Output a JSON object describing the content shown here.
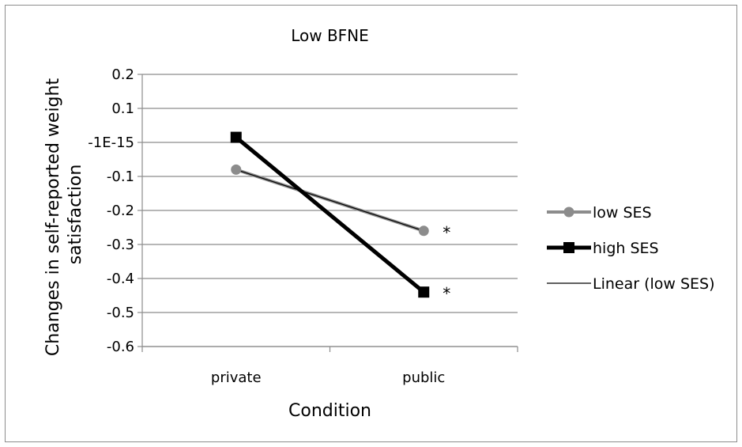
{
  "chart_data": {
    "type": "line",
    "title": "Low BFNE",
    "xlabel": "Condition",
    "ylabel_lines": [
      "Changes in self-reported weight",
      "satisfaction"
    ],
    "categories": [
      "private",
      "public"
    ],
    "y_ticks": [
      0.2,
      0.1,
      0,
      -0.1,
      -0.2,
      -0.3,
      -0.4,
      -0.5,
      -0.6
    ],
    "y_tick_labels": [
      "0.2",
      "0.1",
      "-1E-15",
      "-0.1",
      "-0.2",
      "-0.3",
      "-0.4",
      "-0.5",
      "-0.6"
    ],
    "ylim": [
      -0.6,
      0.2
    ],
    "grid": true,
    "legend_position": "right",
    "series": [
      {
        "name": "low SES",
        "values": [
          -0.08,
          -0.26
        ],
        "color": "#8c8c8c",
        "marker": "circle"
      },
      {
        "name": "high SES",
        "values": [
          0.015,
          -0.44
        ],
        "color": "#000000",
        "marker": "square"
      }
    ],
    "trendline": {
      "name": "Linear (low SES)",
      "color": "#000000"
    },
    "annotations": [
      {
        "text": "*",
        "category": "public",
        "y": -0.26
      },
      {
        "text": "*",
        "category": "public",
        "y": -0.44
      }
    ]
  }
}
